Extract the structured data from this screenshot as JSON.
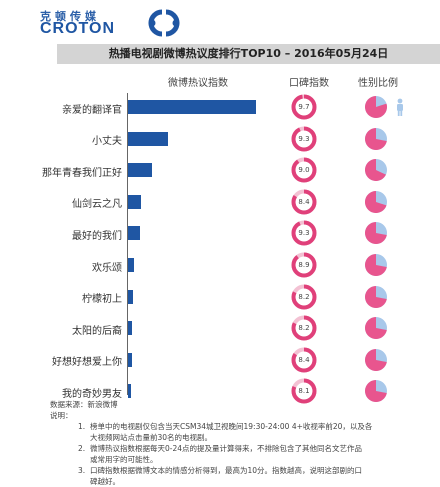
{
  "logo": {
    "top_text": "克顿传媒",
    "main_text": "CROTON"
  },
  "title": "热播电视剧微博热议度排行TOP10 – 2016年05月24日",
  "headers": {
    "weibo": "微博热议指数",
    "koubei": "口碑指数",
    "gender": "性别比例"
  },
  "colors": {
    "bar": "#1f56a3",
    "ring": "#e0407a",
    "male": "#a8c8ea",
    "female": "#e8558e",
    "title_bg": "#d4d4d4"
  },
  "chart_data": {
    "type": "bar",
    "categories": [
      "亲爱的翻译官",
      "小丈夫",
      "那年青春我们正好",
      "仙剑云之凡",
      "最好的我们",
      "欢乐颂",
      "柠檬初上",
      "太阳的后裔",
      "好想好想爱上你",
      "我的奇妙男友"
    ],
    "values": [
      100,
      31,
      19,
      10,
      9,
      5,
      4,
      3,
      3,
      2
    ],
    "koubei_scores": [
      "9.7",
      "9.3",
      "9.0",
      "8.4",
      "9.3",
      "8.9",
      "8.2",
      "8.2",
      "8.4",
      "8.1"
    ],
    "koubei_values": [
      9.7,
      9.3,
      9.0,
      8.4,
      9.3,
      8.9,
      8.2,
      8.2,
      8.4,
      8.1
    ],
    "koubei_max": 10,
    "female_share": [
      0.8,
      0.72,
      0.68,
      0.7,
      0.72,
      0.72,
      0.72,
      0.72,
      0.72,
      0.72
    ],
    "xlim": [
      0,
      100
    ]
  },
  "notes": {
    "source": "数据来源：新浪微博",
    "label": "说明：",
    "items": [
      {
        "num": "1.",
        "lines": [
          "榜单中的电视剧仅包含当天CSM34城卫视晚间19:30-24:00 4+收视率前20，以及各",
          "大视频网站点击量前30名的电视剧。"
        ]
      },
      {
        "num": "2.",
        "lines": [
          "微博热议指数根据每天0-24点的提及量计算得来，不排除包含了其他同名文艺作品",
          "或常用字的可能性。"
        ]
      },
      {
        "num": "3.",
        "lines": [
          "口碑指数根据微博文本的情感分析得到，最高为10分。指数越高，说明这部剧的口",
          "碑越好。"
        ]
      }
    ]
  }
}
